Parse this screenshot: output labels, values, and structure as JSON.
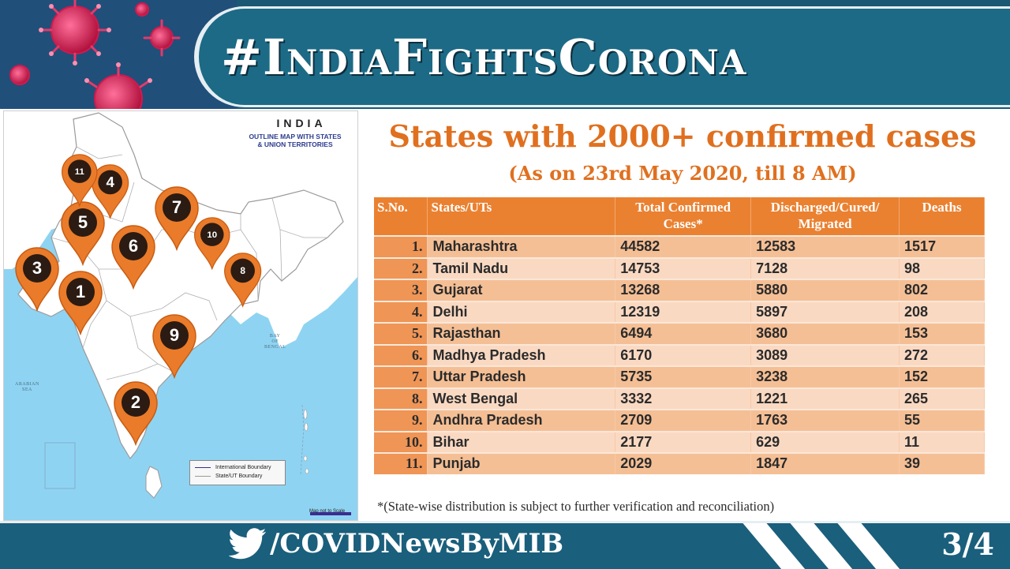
{
  "header": {
    "hashtag": "#IndiaFightsCorona"
  },
  "map": {
    "title": "INDIA",
    "subtitle_line1": "OUTLINE MAP WITH STATES",
    "subtitle_line2": "& UNION TERRITORIES",
    "sea_bay_1": "BAY",
    "sea_bay_2": "OF",
    "sea_bay_3": "BENGAL",
    "sea_arabian_1": "ARABIAN",
    "sea_arabian_2": "SEA",
    "legend_international": "International Boundary",
    "legend_state": "State/UT Boundary",
    "scale_note": "Map not to Scale",
    "pin_color": "#ea7b2a",
    "pins": [
      {
        "number": "1"
      },
      {
        "number": "2"
      },
      {
        "number": "3"
      },
      {
        "number": "4"
      },
      {
        "number": "5"
      },
      {
        "number": "6"
      },
      {
        "number": "7"
      },
      {
        "number": "8"
      },
      {
        "number": "9"
      },
      {
        "number": "10"
      },
      {
        "number": "11"
      }
    ]
  },
  "content": {
    "title": "States with 2000+ confirmed cases",
    "subtitle": "(As on 23rd May 2020, till 8 AM)",
    "accent_color": "#e0701f",
    "table": {
      "headers": {
        "sno": "S.No.",
        "state": "States/UTs",
        "confirmed_line1": "Total Confirmed",
        "confirmed_line2": "Cases*",
        "discharged_line1": "Discharged/Cured/",
        "discharged_line2": "Migrated",
        "deaths": "Deaths"
      },
      "rows": [
        {
          "sno": "1.",
          "state": "Maharashtra",
          "confirmed": "44582",
          "discharged": "12583",
          "deaths": "1517"
        },
        {
          "sno": "2.",
          "state": "Tamil Nadu",
          "confirmed": "14753",
          "discharged": "7128",
          "deaths": "98"
        },
        {
          "sno": "3.",
          "state": "Gujarat",
          "confirmed": "13268",
          "discharged": "5880",
          "deaths": "802"
        },
        {
          "sno": "4.",
          "state": "Delhi",
          "confirmed": "12319",
          "discharged": "5897",
          "deaths": "208"
        },
        {
          "sno": "5.",
          "state": "Rajasthan",
          "confirmed": "6494",
          "discharged": "3680",
          "deaths": "153"
        },
        {
          "sno": "6.",
          "state": "Madhya Pradesh",
          "confirmed": "6170",
          "discharged": "3089",
          "deaths": "272"
        },
        {
          "sno": "7.",
          "state": "Uttar Pradesh",
          "confirmed": "5735",
          "discharged": "3238",
          "deaths": "152"
        },
        {
          "sno": "8.",
          "state": "West Bengal",
          "confirmed": "3332",
          "discharged": "1221",
          "deaths": "265"
        },
        {
          "sno": "9.",
          "state": "Andhra Pradesh",
          "confirmed": "2709",
          "discharged": "1763",
          "deaths": "55"
        },
        {
          "sno": "10.",
          "state": "Bihar",
          "confirmed": "2177",
          "discharged": "629",
          "deaths": "11"
        },
        {
          "sno": "11.",
          "state": "Punjab",
          "confirmed": "2029",
          "discharged": "1847",
          "deaths": "39"
        }
      ]
    },
    "footnote": "*(State-wise distribution is subject to further verification and reconciliation)"
  },
  "footer": {
    "twitter_icon": "twitter-bird-icon",
    "handle": "/COVIDNewsByMIB",
    "page_indicator": "3/4"
  }
}
